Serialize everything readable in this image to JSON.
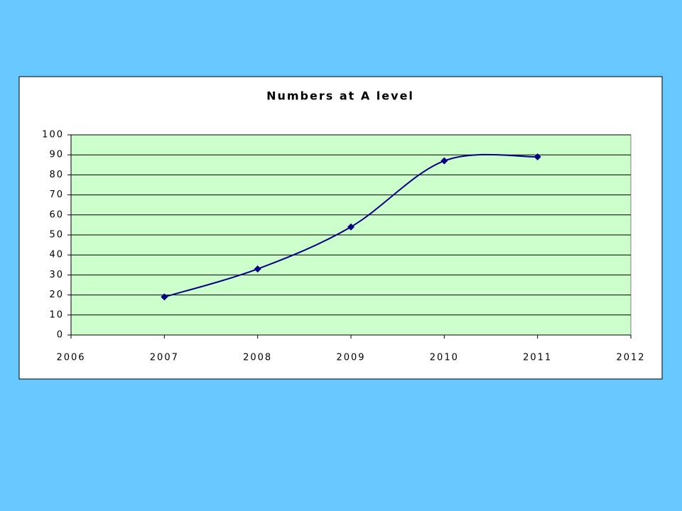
{
  "chart_data": {
    "type": "line",
    "title": "Numbers at A level",
    "x": [
      2007,
      2008,
      2009,
      2010,
      2011
    ],
    "series": [
      {
        "values": [
          19,
          33,
          54,
          87,
          89
        ],
        "color": "#000080"
      }
    ],
    "xlim": [
      2006,
      2012
    ],
    "xticks": [
      2006,
      2007,
      2008,
      2009,
      2010,
      2011,
      2012
    ],
    "ylim": [
      0,
      100
    ],
    "yticks": [
      0,
      10,
      20,
      30,
      40,
      50,
      60,
      70,
      80,
      90,
      100
    ],
    "grid": true,
    "smooth": true,
    "plot_background": "#ccffcc"
  }
}
